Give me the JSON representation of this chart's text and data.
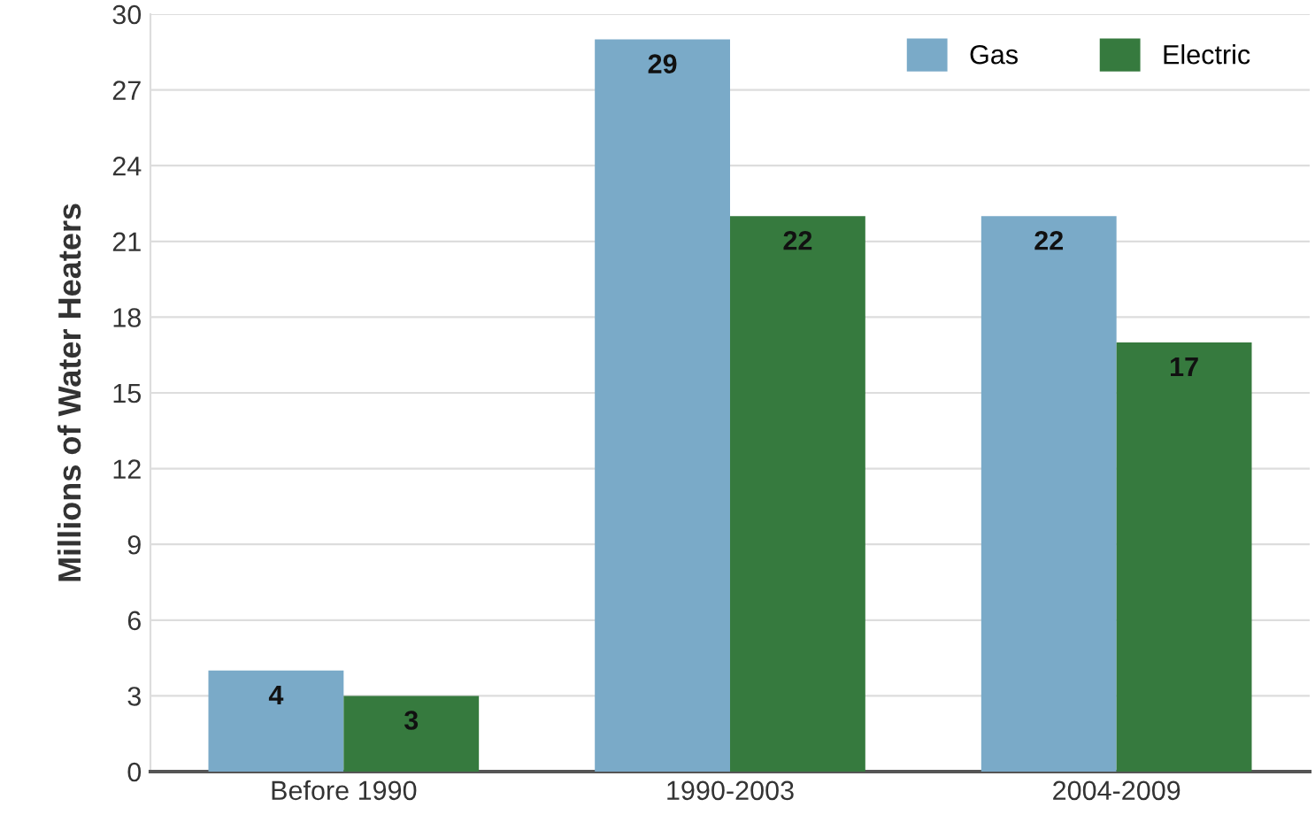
{
  "chart_data": {
    "type": "bar",
    "ylabel": "Millions of Water Heaters",
    "categories": [
      "Before 1990",
      "1990-2003",
      "2004-2009"
    ],
    "series": [
      {
        "name": "Gas",
        "color": "#7aaac8",
        "values": [
          4,
          29,
          22
        ]
      },
      {
        "name": "Electric",
        "color": "#367a3e",
        "values": [
          3,
          22,
          17
        ]
      }
    ],
    "ylim": [
      0,
      30
    ],
    "yticks": [
      0,
      3,
      6,
      9,
      12,
      15,
      18,
      21,
      24,
      27,
      30
    ],
    "grid": "y",
    "legend": "top right",
    "data_labels": true
  }
}
